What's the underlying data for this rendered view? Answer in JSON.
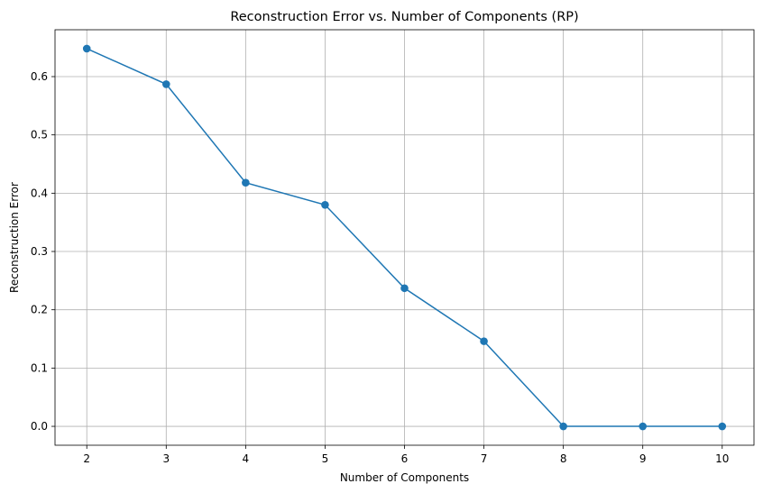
{
  "chart_data": {
    "type": "line",
    "title": "Reconstruction Error vs. Number of Components (RP)",
    "xlabel": "Number of Components",
    "ylabel": "Reconstruction Error",
    "x": [
      2,
      3,
      4,
      5,
      6,
      7,
      8,
      9,
      10
    ],
    "series": [
      {
        "values": [
          0.648,
          0.587,
          0.418,
          0.38,
          0.237,
          0.146,
          0.0,
          0.0,
          0.0
        ],
        "color": "#1f77b4",
        "marker": "circle"
      }
    ],
    "xticks": [
      "2",
      "3",
      "4",
      "5",
      "6",
      "7",
      "8",
      "9",
      "10"
    ],
    "yticks": [
      "0.0",
      "0.1",
      "0.2",
      "0.3",
      "0.4",
      "0.5",
      "0.6"
    ],
    "xlim": [
      1.6,
      10.4
    ],
    "ylim": [
      -0.0324,
      0.6804
    ],
    "grid": true
  }
}
